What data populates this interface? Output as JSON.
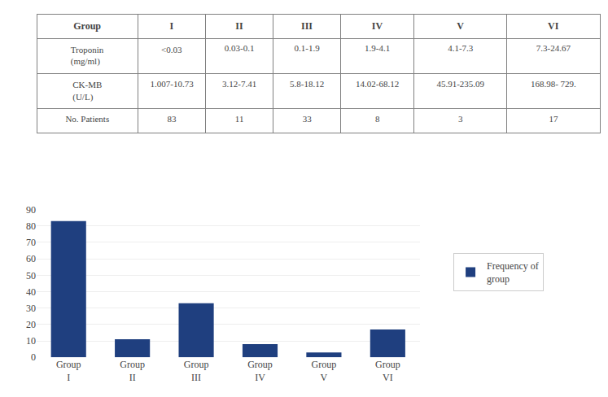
{
  "chart_data": [
    {
      "type": "table",
      "columns": [
        "Group",
        "I",
        "II",
        "III",
        "IV",
        "V",
        "VI"
      ],
      "rows": [
        [
          "Troponin\n(mg/ml)",
          "<0.03",
          "0.03-0.1",
          "0.1-1.9",
          "1.9-4.1",
          "4.1-7.3",
          "7.3-24.67"
        ],
        [
          "CK-MB\n(U/L)",
          "1.007-10.73",
          "3.12-7.41",
          "5.8-18.12",
          "14.02-68.12",
          "45.91-235.09",
          "168.98- 729."
        ],
        [
          "No. Patients",
          "83",
          "11",
          "33",
          "8",
          "3",
          "17"
        ]
      ]
    },
    {
      "type": "bar",
      "categories": [
        "Group\nI",
        "Group\nII",
        "Group\nIII",
        "Group\nIV",
        "Group\nV",
        "Group\nVI"
      ],
      "series": [
        {
          "name": "Frequency of\ngroup",
          "color": "#1F3F7F",
          "values": [
            83,
            11,
            33,
            8,
            3,
            17
          ]
        }
      ],
      "ylim": [
        0,
        90
      ],
      "yticks": [
        0,
        10,
        20,
        30,
        40,
        50,
        60,
        70,
        80,
        90
      ],
      "grid": true,
      "legend": "right"
    }
  ]
}
